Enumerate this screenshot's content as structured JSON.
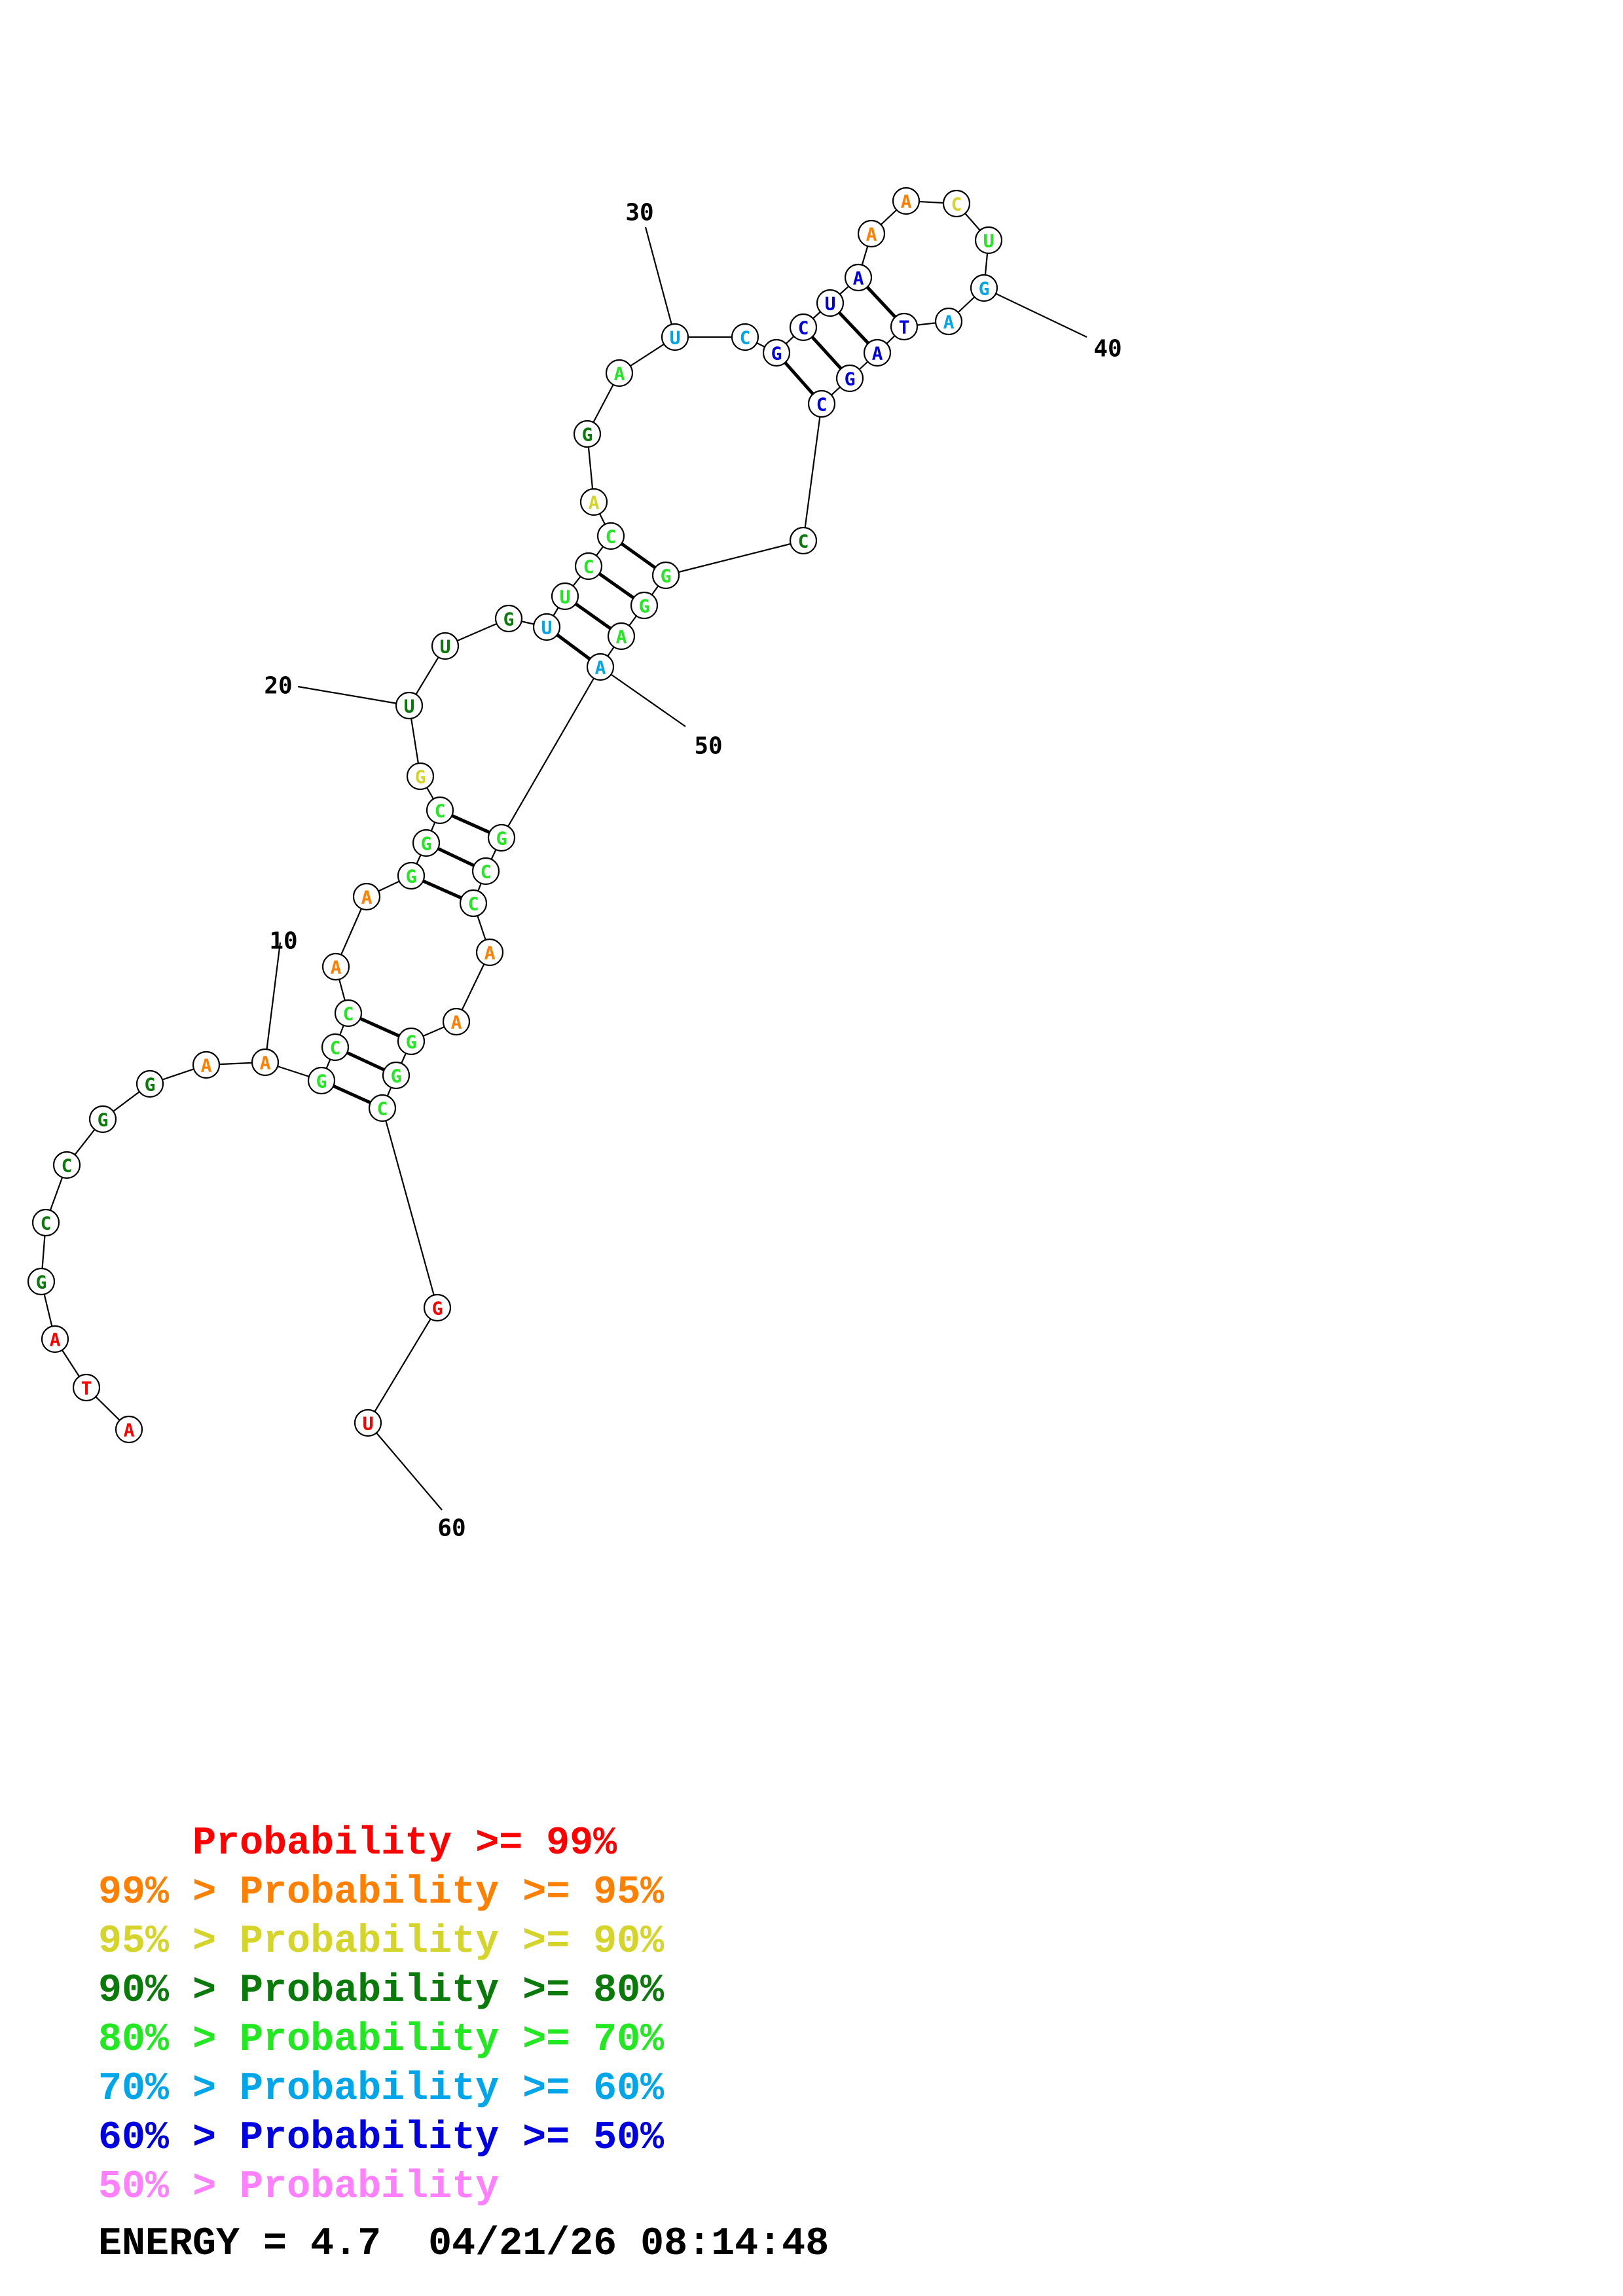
{
  "colors": {
    "p99": "#ff0000",
    "p95": "#ff8000",
    "p90": "#d4d42a",
    "p80": "#0a7a0a",
    "p70": "#22e822",
    "p60": "#00a5ea",
    "p50": "#0000e0",
    "plt50": "#ff80ff"
  },
  "sequence": [
    {
      "n": 1,
      "base": "A",
      "prob": "p99"
    },
    {
      "n": 2,
      "base": "T",
      "prob": "p99"
    },
    {
      "n": 3,
      "base": "A",
      "prob": "p99"
    },
    {
      "n": 4,
      "base": "G",
      "prob": "p80"
    },
    {
      "n": 5,
      "base": "C",
      "prob": "p80"
    },
    {
      "n": 6,
      "base": "C",
      "prob": "p80"
    },
    {
      "n": 7,
      "base": "G",
      "prob": "p80"
    },
    {
      "n": 8,
      "base": "G",
      "prob": "p80"
    },
    {
      "n": 9,
      "base": "A",
      "prob": "p95"
    },
    {
      "n": 10,
      "base": "A",
      "prob": "p95"
    },
    {
      "n": 11,
      "base": "G",
      "prob": "p70"
    },
    {
      "n": 12,
      "base": "C",
      "prob": "p70"
    },
    {
      "n": 13,
      "base": "C",
      "prob": "p70"
    },
    {
      "n": 14,
      "base": "A",
      "prob": "p95"
    },
    {
      "n": 15,
      "base": "A",
      "prob": "p95"
    },
    {
      "n": 16,
      "base": "G",
      "prob": "p70"
    },
    {
      "n": 17,
      "base": "G",
      "prob": "p70"
    },
    {
      "n": 18,
      "base": "C",
      "prob": "p70"
    },
    {
      "n": 19,
      "base": "G",
      "prob": "p90"
    },
    {
      "n": 20,
      "base": "U",
      "prob": "p80"
    },
    {
      "n": 21,
      "base": "U",
      "prob": "p80"
    },
    {
      "n": 22,
      "base": "G",
      "prob": "p80"
    },
    {
      "n": 23,
      "base": "U",
      "prob": "p60"
    },
    {
      "n": 24,
      "base": "U",
      "prob": "p70"
    },
    {
      "n": 25,
      "base": "C",
      "prob": "p70"
    },
    {
      "n": 26,
      "base": "C",
      "prob": "p70"
    },
    {
      "n": 27,
      "base": "A",
      "prob": "p90"
    },
    {
      "n": 28,
      "base": "G",
      "prob": "p80"
    },
    {
      "n": 29,
      "base": "A",
      "prob": "p70"
    },
    {
      "n": 30,
      "base": "U",
      "prob": "p60"
    },
    {
      "n": 31,
      "base": "C",
      "prob": "p60"
    },
    {
      "n": 32,
      "base": "G",
      "prob": "p50"
    },
    {
      "n": 33,
      "base": "C",
      "prob": "p50"
    },
    {
      "n": 34,
      "base": "U",
      "prob": "p50"
    },
    {
      "n": 35,
      "base": "A",
      "prob": "p50"
    },
    {
      "n": 36,
      "base": "A",
      "prob": "p95"
    },
    {
      "n": 37,
      "base": "A",
      "prob": "p95"
    },
    {
      "n": 38,
      "base": "C",
      "prob": "p90"
    },
    {
      "n": 39,
      "base": "U",
      "prob": "p70"
    },
    {
      "n": 40,
      "base": "G",
      "prob": "p60"
    },
    {
      "n": 41,
      "base": "A",
      "prob": "p60"
    },
    {
      "n": 42,
      "base": "T",
      "prob": "p50"
    },
    {
      "n": 43,
      "base": "A",
      "prob": "p50"
    },
    {
      "n": 44,
      "base": "G",
      "prob": "p50"
    },
    {
      "n": 45,
      "base": "C",
      "prob": "p50"
    },
    {
      "n": 46,
      "base": "C",
      "prob": "p80"
    },
    {
      "n": 47,
      "base": "G",
      "prob": "p70"
    },
    {
      "n": 48,
      "base": "G",
      "prob": "p70"
    },
    {
      "n": 49,
      "base": "A",
      "prob": "p70"
    },
    {
      "n": 50,
      "base": "A",
      "prob": "p60"
    },
    {
      "n": 51,
      "base": "G",
      "prob": "p70"
    },
    {
      "n": 52,
      "base": "C",
      "prob": "p70"
    },
    {
      "n": 53,
      "base": "C",
      "prob": "p70"
    },
    {
      "n": 54,
      "base": "A",
      "prob": "p95"
    },
    {
      "n": 55,
      "base": "A",
      "prob": "p95"
    },
    {
      "n": 56,
      "base": "G",
      "prob": "p70"
    },
    {
      "n": 57,
      "base": "G",
      "prob": "p70"
    },
    {
      "n": 58,
      "base": "C",
      "prob": "p70"
    },
    {
      "n": 59,
      "base": "G",
      "prob": "p99"
    },
    {
      "n": 60,
      "base": "U",
      "prob": "p99"
    }
  ],
  "pairs": [
    [
      11,
      58
    ],
    [
      12,
      57
    ],
    [
      13,
      56
    ],
    [
      16,
      53
    ],
    [
      17,
      52
    ],
    [
      18,
      51
    ],
    [
      23,
      50
    ],
    [
      24,
      49
    ],
    [
      25,
      48
    ],
    [
      26,
      47
    ],
    [
      32,
      45
    ],
    [
      33,
      44
    ],
    [
      34,
      43
    ],
    [
      35,
      42
    ]
  ],
  "index_labels": [
    {
      "n": 10,
      "text": "10"
    },
    {
      "n": 20,
      "text": "20"
    },
    {
      "n": 30,
      "text": "30"
    },
    {
      "n": 40,
      "text": "40"
    },
    {
      "n": 50,
      "text": "50"
    },
    {
      "n": 60,
      "text": "60"
    }
  ],
  "legend": [
    {
      "prefix": "    ",
      "text": "Probability >= 99%",
      "color_key": "p99"
    },
    {
      "prefix": "99% > ",
      "text": "Probability >= 95%",
      "color_key": "p95"
    },
    {
      "prefix": "95% > ",
      "text": "Probability >= 90%",
      "color_key": "p90"
    },
    {
      "prefix": "90% > ",
      "text": "Probability >= 80%",
      "color_key": "p80"
    },
    {
      "prefix": "80% > ",
      "text": "Probability >= 70%",
      "color_key": "p70"
    },
    {
      "prefix": "70% > ",
      "text": "Probability >= 60%",
      "color_key": "p60"
    },
    {
      "prefix": "60% > ",
      "text": "Probability >= 50%",
      "color_key": "p50"
    },
    {
      "prefix": "50% > ",
      "text": "Probability",
      "color_key": "plt50"
    }
  ],
  "footer": {
    "energy": "ENERGY = 4.7",
    "timestamp": "04/21/26 08:14:48"
  }
}
